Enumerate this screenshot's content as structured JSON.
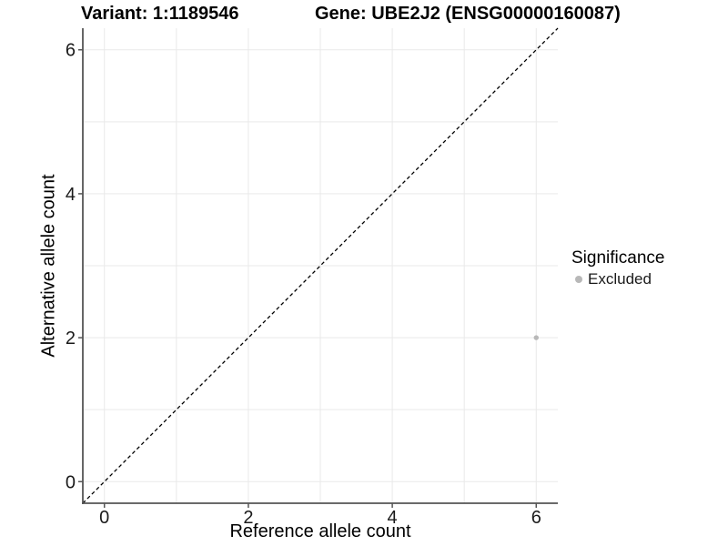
{
  "chart_data": {
    "type": "scatter",
    "titles": {
      "left": "Variant: 1:1189546",
      "right": "Gene: UBE2J2 (ENSG00000160087)"
    },
    "xlabel": "Reference allele count",
    "ylabel": "Alternative allele count",
    "xlim": [
      -0.3,
      6.3
    ],
    "ylim": [
      -0.3,
      6.3
    ],
    "x_ticks": [
      0,
      2,
      4,
      6
    ],
    "y_ticks": [
      0,
      2,
      4,
      6
    ],
    "grid_values": [
      0,
      1,
      2,
      3,
      4,
      5,
      6
    ],
    "grid": true,
    "reference_line": {
      "type": "identity y=x",
      "style": "dashed",
      "color": "#000000"
    },
    "series": [
      {
        "name": "Excluded",
        "color": "#b8b8b8",
        "points": [
          {
            "x": 6,
            "y": 2
          }
        ]
      }
    ],
    "legend": {
      "title": "Significance",
      "position": "right",
      "items": [
        {
          "label": "Excluded",
          "color": "#b8b8b8"
        }
      ]
    },
    "style": {
      "background": "#ffffff",
      "gridline_color": "#e9e9e9",
      "axis_line_color": "#555555",
      "tick_label_color": "#1a1a1a"
    }
  }
}
